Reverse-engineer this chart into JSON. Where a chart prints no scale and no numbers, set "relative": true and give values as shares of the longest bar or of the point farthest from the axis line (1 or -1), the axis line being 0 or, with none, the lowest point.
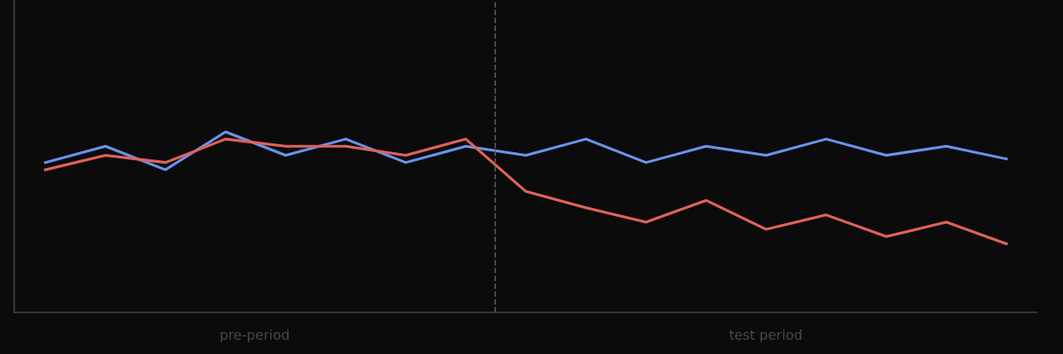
{
  "chart_data": {
    "type": "line",
    "relative": true,
    "categories": [
      null,
      null,
      null,
      null,
      null,
      null,
      null,
      null,
      null,
      null,
      null,
      null,
      null,
      null,
      null,
      null,
      null
    ],
    "series": [
      {
        "color": "#6a93ea",
        "values": [
          0.83,
          0.92,
          0.79,
          1,
          0.87,
          0.96,
          0.83,
          0.92,
          0.87,
          0.96,
          0.83,
          0.92,
          0.87,
          0.96,
          0.87,
          0.92,
          0.85
        ]
      },
      {
        "color": "#e0625b",
        "values": [
          0.79,
          0.87,
          0.83,
          0.96,
          0.92,
          0.92,
          0.87,
          0.96,
          0.67,
          0.58,
          0.5,
          0.62,
          0.46,
          0.54,
          0.42,
          0.5,
          0.38
        ]
      }
    ],
    "annotations": [
      "pre-period",
      "test period"
    ],
    "grid": false,
    "legend": false,
    "marker": "none",
    "line_style": "solid"
  }
}
